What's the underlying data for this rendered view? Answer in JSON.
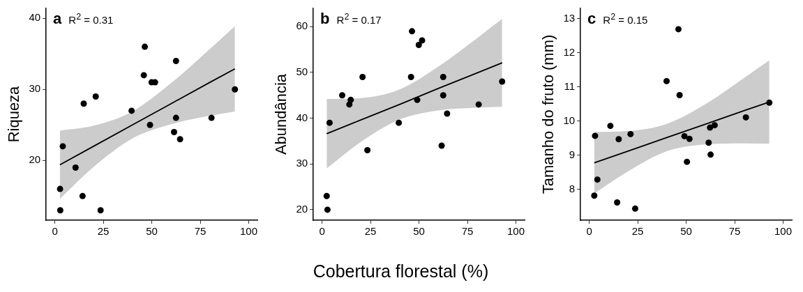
{
  "chart_data": [
    {
      "type": "scatter",
      "title": "a",
      "annotations": [
        "R$^{2}$ = 0.31"
      ],
      "ylabel": "Riqueza",
      "xlim": [
        -4.5,
        104.5
      ],
      "xticks": [
        0,
        25,
        50,
        75,
        100
      ],
      "ylim": [
        11.6,
        41.4
      ],
      "yticks": [
        20,
        30,
        40
      ],
      "series": [
        {
          "marker": "circle",
          "color": "#000000",
          "x": [
            2.7,
            4.1,
            2.8,
            10.7,
            14.9,
            14.3,
            21.1,
            23.6,
            39.6,
            46.4,
            45.9,
            49.9,
            51.7,
            49.1,
            62.5,
            62.5,
            61.5,
            64.6,
            80.8,
            92.9
          ],
          "values": [
            16,
            22,
            13,
            19,
            28,
            15,
            29,
            13,
            27,
            36,
            32,
            31,
            31,
            25,
            34,
            26,
            24,
            23,
            26,
            30
          ]
        },
        {
          "type": "line",
          "color": "#000000",
          "x": [
            2.6,
            20,
            40,
            60,
            80,
            92.9
          ],
          "values": [
            19.4,
            22.0,
            25.0,
            28.0,
            31.0,
            32.9
          ],
          "lower": [
            14.6,
            19.1,
            23.1,
            25.1,
            26.3,
            26.9
          ],
          "upper": [
            24.2,
            24.9,
            26.9,
            30.9,
            35.7,
            38.9
          ]
        }
      ]
    },
    {
      "type": "scatter",
      "title": "b",
      "annotations": [
        "R$^{2}$ = 0.17"
      ],
      "ylabel": "Abundância",
      "xlabel": "Cobertura florestal (%)",
      "xlim": [
        -4.5,
        104.5
      ],
      "xticks": [
        0,
        25,
        50,
        75,
        100
      ],
      "ylim": [
        17.7,
        64
      ],
      "yticks": [
        20,
        30,
        40,
        50,
        60
      ],
      "series": [
        {
          "marker": "circle",
          "color": "#000000",
          "x": [
            2.4,
            2.8,
            3.9,
            10.4,
            14.1,
            14.8,
            20.9,
            23.4,
            39.6,
            46.4,
            45.9,
            49.1,
            49.9,
            51.6,
            62.5,
            62.5,
            61.7,
            64.5,
            80.8,
            92.9
          ],
          "values": [
            23,
            20,
            39,
            45,
            43,
            44,
            49,
            33,
            39,
            59,
            49,
            44,
            56,
            57,
            49,
            45,
            34,
            41,
            43,
            48
          ]
        },
        {
          "type": "line",
          "color": "#000000",
          "x": [
            2.4,
            20,
            40,
            60,
            80,
            92.9
          ],
          "values": [
            36.6,
            39.6,
            43.0,
            46.5,
            49.9,
            52.1
          ],
          "lower": [
            29.0,
            34.8,
            39.7,
            41.7,
            42.3,
            42.5
          ],
          "upper": [
            44.2,
            44.4,
            46.3,
            51.3,
            57.5,
            61.7
          ]
        }
      ]
    },
    {
      "type": "scatter",
      "title": "c",
      "annotations": [
        "R$^{2}$ = 0.15"
      ],
      "ylabel": "Tamanho do fruto (mm)",
      "xlim": [
        -4.5,
        104.5
      ],
      "xticks": [
        0,
        25,
        50,
        75,
        100
      ],
      "ylim": [
        7.1,
        13.3
      ],
      "yticks": [
        8,
        9,
        10,
        11,
        12,
        13
      ],
      "series": [
        {
          "marker": "circle",
          "color": "#000000",
          "x": [
            3.0,
            4.2,
            2.6,
            10.9,
            14.4,
            15.2,
            21.3,
            23.7,
            39.9,
            46.0,
            46.6,
            49.1,
            50.4,
            51.7,
            61.6,
            62.6,
            62.3,
            64.7,
            80.8,
            92.9
          ],
          "values": [
            9.57,
            8.29,
            7.82,
            9.86,
            7.62,
            9.47,
            9.62,
            7.44,
            11.17,
            12.69,
            10.76,
            9.56,
            8.81,
            9.48,
            9.37,
            9.02,
            9.81,
            9.88,
            10.11,
            10.54
          ]
        },
        {
          "type": "line",
          "color": "#000000",
          "x": [
            2.6,
            20,
            40,
            60,
            80,
            92.9
          ],
          "values": [
            8.78,
            9.12,
            9.52,
            9.91,
            10.31,
            10.56
          ],
          "lower": [
            7.88,
            8.53,
            9.12,
            9.32,
            9.35,
            9.34
          ],
          "upper": [
            9.68,
            9.71,
            9.92,
            10.5,
            11.27,
            11.78
          ]
        }
      ]
    }
  ]
}
